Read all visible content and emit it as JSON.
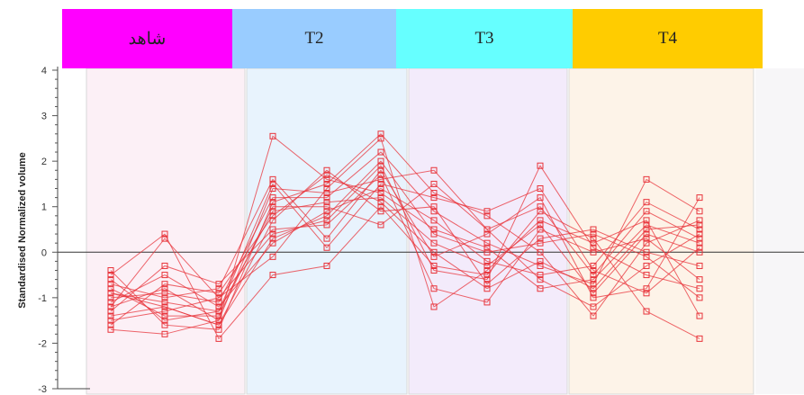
{
  "group_headers": [
    {
      "label": "شاهد",
      "color": "#ff00ff"
    },
    {
      "label": "T2",
      "color": "#99ccff"
    },
    {
      "label": "T3",
      "color": "#66ffff"
    },
    {
      "label": "T4",
      "color": "#ffcc00"
    }
  ],
  "chart_data": {
    "type": "line",
    "ylabel": "Standardised Normalized volume",
    "ylim": [
      -3,
      4
    ],
    "yticks": [
      -3,
      -2,
      -1,
      0,
      1,
      2,
      3,
      4
    ],
    "grid": false,
    "series_color": "#e8333a",
    "group_backgrounds": [
      "#fcf0f6",
      "#e8f3fd",
      "#f3ebfb",
      "#fdf3e8"
    ],
    "x_positions": [
      "شاهد-1",
      "شاهد-2",
      "شاهد-3",
      "T2-1",
      "T2-2",
      "T2-3",
      "T3-1",
      "T3-2",
      "T3-3",
      "T4-1",
      "T4-2",
      "T4-3"
    ],
    "series": [
      {
        "values": [
          -1.2,
          -0.8,
          -1.5,
          1.4,
          1.3,
          1.6,
          1.8,
          0.5,
          1.0,
          -0.5,
          0.9,
          0.3
        ]
      },
      {
        "values": [
          -0.9,
          -1.1,
          -1.3,
          0.9,
          1.1,
          1.2,
          0.2,
          -0.3,
          0.6,
          -0.9,
          0.4,
          0.0
        ]
      },
      {
        "values": [
          -1.5,
          -1.3,
          -1.0,
          0.4,
          0.7,
          1.9,
          -0.4,
          -0.6,
          1.9,
          0.1,
          -0.5,
          -0.8
        ]
      },
      {
        "values": [
          -0.4,
          -1.6,
          -1.7,
          1.1,
          1.5,
          2.6,
          1.3,
          0.8,
          0.0,
          -1.4,
          0.2,
          0.7
        ]
      },
      {
        "values": [
          -1.1,
          -0.5,
          -1.2,
          0.2,
          0.9,
          1.4,
          0.7,
          -0.2,
          -0.5,
          -0.3,
          1.1,
          0.5
        ]
      },
      {
        "values": [
          -0.7,
          -1.0,
          -0.8,
          1.6,
          0.3,
          1.8,
          -0.1,
          0.4,
          1.2,
          -1.0,
          -0.8,
          1.2
        ]
      },
      {
        "values": [
          -1.4,
          -1.2,
          -1.6,
          0.7,
          1.8,
          0.9,
          1.0,
          -0.7,
          0.3,
          0.5,
          0.0,
          -0.3
        ]
      },
      {
        "values": [
          -1.7,
          -1.8,
          -1.5,
          2.55,
          1.6,
          1.3,
          0.5,
          0.1,
          -0.8,
          -0.6,
          0.6,
          0.2
        ]
      },
      {
        "values": [
          -0.5,
          0.4,
          -1.9,
          -0.5,
          -0.3,
          1.0,
          -0.3,
          -0.5,
          0.9,
          0.3,
          -1.3,
          -1.9
        ]
      },
      {
        "values": [
          -1.0,
          -0.9,
          -1.1,
          1.2,
          1.2,
          2.2,
          0.9,
          0.2,
          -0.3,
          -0.7,
          1.6,
          0.9
        ]
      },
      {
        "values": [
          -1.3,
          -0.3,
          -0.7,
          0.5,
          0.6,
          1.7,
          -0.8,
          -1.1,
          0.5,
          0.0,
          0.3,
          -0.6
        ]
      },
      {
        "values": [
          -0.8,
          -1.4,
          -1.4,
          1.0,
          1.0,
          0.6,
          1.5,
          0.5,
          -0.6,
          -1.2,
          -0.3,
          0.4
        ]
      },
      {
        "values": [
          -1.2,
          0.3,
          -1.0,
          -0.1,
          1.4,
          2.5,
          -1.2,
          -0.4,
          0.7,
          0.2,
          0.7,
          -1.4
        ]
      },
      {
        "values": [
          -0.6,
          -1.5,
          -1.3,
          1.5,
          0.1,
          1.5,
          1.2,
          0.9,
          1.4,
          -0.4,
          -0.9,
          0.1
        ]
      },
      {
        "values": [
          -1.6,
          -0.7,
          -0.9,
          0.8,
          1.7,
          1.1,
          0.0,
          -0.8,
          -0.2,
          -0.8,
          0.5,
          0.6
        ]
      },
      {
        "values": [
          -0.9,
          -1.2,
          -1.6,
          0.3,
          0.8,
          2.0,
          0.4,
          0.0,
          0.2,
          0.4,
          -0.1,
          -1.0
        ]
      }
    ]
  }
}
